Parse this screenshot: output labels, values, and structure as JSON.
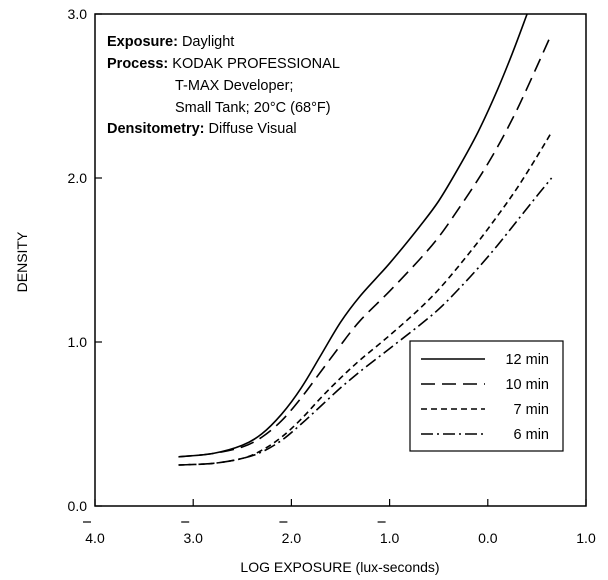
{
  "chart_data": {
    "type": "line",
    "xlabel": "LOG EXPOSURE (lux-seconds)",
    "ylabel": "DENSITY",
    "xlim": [
      -4.0,
      1.0
    ],
    "ylim": [
      0.0,
      3.0
    ],
    "x_tick_labels": [
      "4.0",
      "3.0",
      "2.0",
      "1.0",
      "0.0",
      "1.0"
    ],
    "x_tick_values": [
      -4.0,
      -3.0,
      -2.0,
      -1.0,
      0.0,
      1.0
    ],
    "x_tick_overbar": [
      true,
      true,
      true,
      true,
      false,
      false
    ],
    "y_tick_labels": [
      "0.0",
      "1.0",
      "2.0",
      "3.0"
    ],
    "y_tick_values": [
      0.0,
      1.0,
      2.0,
      3.0
    ],
    "grid": false,
    "legend_position": "bottom-right",
    "annotations": [
      {
        "bold": "Exposure:",
        "text": " Daylight"
      },
      {
        "bold": "Process:",
        "text": " KODAK PROFESSIONAL"
      },
      {
        "bold": "",
        "text": "T-MAX Developer;"
      },
      {
        "bold": "",
        "text": "Small Tank; 20°C (68°F)"
      },
      {
        "bold": "Densitometry:",
        "text": " Diffuse Visual"
      }
    ],
    "series": [
      {
        "name": "12 min",
        "dash": "solid",
        "x": [
          -3.15,
          -2.8,
          -2.5,
          -2.3,
          -2.1,
          -1.9,
          -1.7,
          -1.5,
          -1.3,
          -1.0,
          -0.7,
          -0.5,
          -0.3,
          -0.1,
          0.1,
          0.25,
          0.4
        ],
        "y": [
          0.3,
          0.32,
          0.37,
          0.44,
          0.56,
          0.72,
          0.92,
          1.12,
          1.28,
          1.48,
          1.7,
          1.86,
          2.06,
          2.28,
          2.54,
          2.76,
          3.0
        ]
      },
      {
        "name": "10 min",
        "dash": "long-dash",
        "x": [
          -3.15,
          -2.8,
          -2.5,
          -2.3,
          -2.1,
          -1.9,
          -1.7,
          -1.5,
          -1.3,
          -1.0,
          -0.7,
          -0.5,
          -0.3,
          -0.1,
          0.1,
          0.3,
          0.5,
          0.65
        ],
        "y": [
          0.3,
          0.32,
          0.36,
          0.42,
          0.52,
          0.66,
          0.82,
          0.98,
          1.13,
          1.31,
          1.5,
          1.64,
          1.81,
          1.99,
          2.19,
          2.42,
          2.68,
          2.88
        ]
      },
      {
        "name": "7 min",
        "dash": "short-dash",
        "x": [
          -3.15,
          -2.8,
          -2.5,
          -2.3,
          -2.1,
          -1.9,
          -1.7,
          -1.5,
          -1.3,
          -1.0,
          -0.7,
          -0.5,
          -0.3,
          -0.1,
          0.1,
          0.3,
          0.5,
          0.65
        ],
        "y": [
          0.25,
          0.26,
          0.29,
          0.34,
          0.42,
          0.53,
          0.66,
          0.78,
          0.89,
          1.04,
          1.2,
          1.32,
          1.46,
          1.61,
          1.77,
          1.94,
          2.13,
          2.28
        ]
      },
      {
        "name": "6 min",
        "dash": "dash-dot",
        "x": [
          -3.15,
          -2.8,
          -2.5,
          -2.3,
          -2.1,
          -1.9,
          -1.7,
          -1.5,
          -1.3,
          -1.0,
          -0.7,
          -0.5,
          -0.3,
          -0.1,
          0.1,
          0.3,
          0.5,
          0.65
        ],
        "y": [
          0.25,
          0.26,
          0.29,
          0.33,
          0.4,
          0.5,
          0.61,
          0.72,
          0.82,
          0.96,
          1.1,
          1.2,
          1.32,
          1.45,
          1.59,
          1.74,
          1.89,
          2.0
        ]
      }
    ]
  }
}
